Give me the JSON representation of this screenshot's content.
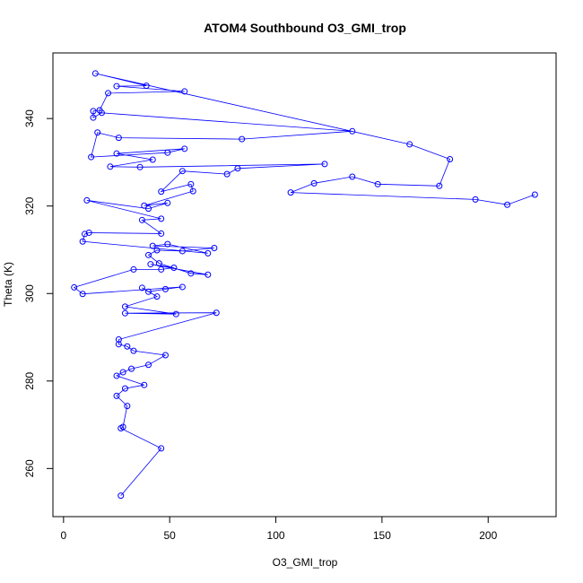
{
  "chart_data": {
    "type": "line",
    "title": "ATOM4 Southbound O3_GMI_trop",
    "xlabel": "O3_GMI_trop",
    "ylabel": "Theta (K)",
    "xlim": [
      -5,
      232
    ],
    "ylim": [
      249,
      355
    ],
    "xticks": [
      0,
      50,
      100,
      150,
      200
    ],
    "yticks": [
      260,
      280,
      300,
      320,
      340
    ],
    "grid": false,
    "legend": "none",
    "marker": "open-circle",
    "color": "#0000ff",
    "series": [
      {
        "points": [
          [
            27,
            253.8
          ],
          [
            46,
            264.6
          ],
          [
            27,
            269.2
          ],
          [
            28,
            269.5
          ],
          [
            30,
            274.3
          ],
          [
            25,
            276.6
          ],
          [
            29,
            278.3
          ],
          [
            38,
            279.1
          ],
          [
            25,
            281.2
          ],
          [
            28,
            282
          ],
          [
            32,
            282.8
          ],
          [
            40,
            283.7
          ],
          [
            48,
            285.9
          ],
          [
            33,
            286.9
          ],
          [
            30,
            287.9
          ],
          [
            26,
            288.4
          ],
          [
            26,
            289.5
          ],
          [
            72,
            295.6
          ],
          [
            29,
            295.5
          ],
          [
            53,
            295.3
          ],
          [
            29,
            297
          ],
          [
            44,
            299.3
          ],
          [
            37,
            301.3
          ],
          [
            40,
            300.4
          ],
          [
            48,
            301
          ],
          [
            56,
            301.5
          ],
          [
            9,
            299.9
          ],
          [
            5,
            301.4
          ],
          [
            33,
            305.5
          ],
          [
            46,
            305.5
          ],
          [
            52,
            305.9
          ],
          [
            41,
            306.7
          ],
          [
            68,
            304.3
          ],
          [
            60,
            304.6
          ],
          [
            45,
            306.9
          ],
          [
            40,
            308.8
          ],
          [
            44,
            309.9
          ],
          [
            56,
            309.7
          ],
          [
            71,
            310.4
          ],
          [
            42,
            310.9
          ],
          [
            49,
            311.3
          ],
          [
            68,
            309.2
          ],
          [
            9,
            311.9
          ],
          [
            10,
            313.6
          ],
          [
            12,
            313.9
          ],
          [
            46,
            313.7
          ],
          [
            37,
            316.8
          ],
          [
            46,
            317.1
          ],
          [
            11,
            321.3
          ],
          [
            40,
            319.4
          ],
          [
            49,
            320.7
          ],
          [
            38,
            320.1
          ],
          [
            61,
            323.4
          ],
          [
            60,
            325
          ],
          [
            46,
            323.3
          ],
          [
            56,
            328
          ],
          [
            77,
            327.3
          ],
          [
            82,
            328.6
          ],
          [
            123,
            329.6
          ],
          [
            36,
            328.9
          ],
          [
            22,
            329
          ],
          [
            42,
            330.6
          ],
          [
            25,
            332
          ],
          [
            57,
            333.1
          ],
          [
            49,
            332.2
          ],
          [
            13,
            331.2
          ],
          [
            16,
            336.8
          ],
          [
            26,
            335.6
          ],
          [
            84,
            335.3
          ],
          [
            136,
            337.1
          ],
          [
            18,
            341.3
          ],
          [
            14,
            340.2
          ],
          [
            14,
            341.7
          ],
          [
            17,
            341.9
          ],
          [
            21,
            345.8
          ],
          [
            57,
            346.2
          ],
          [
            25,
            347.4
          ],
          [
            39,
            347.5
          ],
          [
            15,
            350.3
          ],
          [
            163,
            334.1
          ],
          [
            182,
            330.7
          ],
          [
            177,
            324.6
          ],
          [
            148,
            325
          ],
          [
            136,
            326.7
          ],
          [
            118,
            325.2
          ],
          [
            107,
            323.1
          ],
          [
            194,
            321.5
          ],
          [
            209,
            320.3
          ],
          [
            222,
            322.6
          ]
        ]
      }
    ]
  }
}
